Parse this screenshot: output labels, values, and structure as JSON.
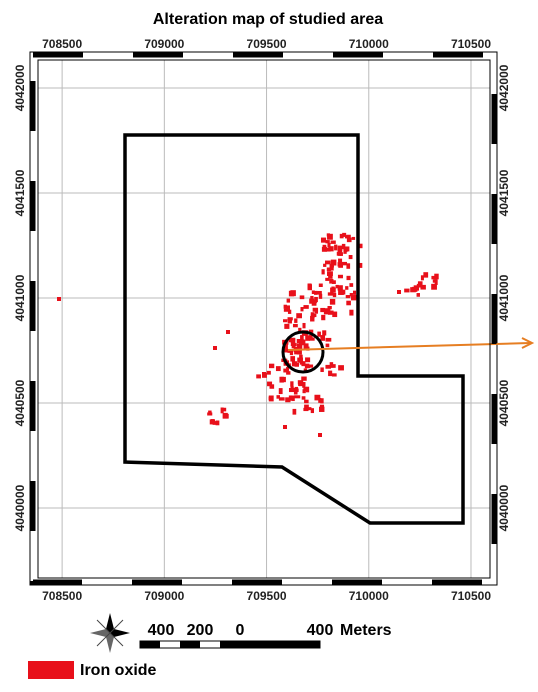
{
  "title": "Alteration map of studied area",
  "xlim": [
    708382,
    710593
  ],
  "xticks": [
    708500,
    709000,
    709500,
    710000,
    710500
  ],
  "ylim": [
    4039667,
    4042133
  ],
  "yticks": [
    4040000,
    4040500,
    4041000,
    4041500,
    4042000
  ],
  "scale_bar": {
    "labels": [
      "400",
      "200",
      "0",
      "400"
    ],
    "unit": "Meters"
  },
  "legend": [
    {
      "label": "Iron oxide",
      "color": "#e8101a"
    }
  ]
}
